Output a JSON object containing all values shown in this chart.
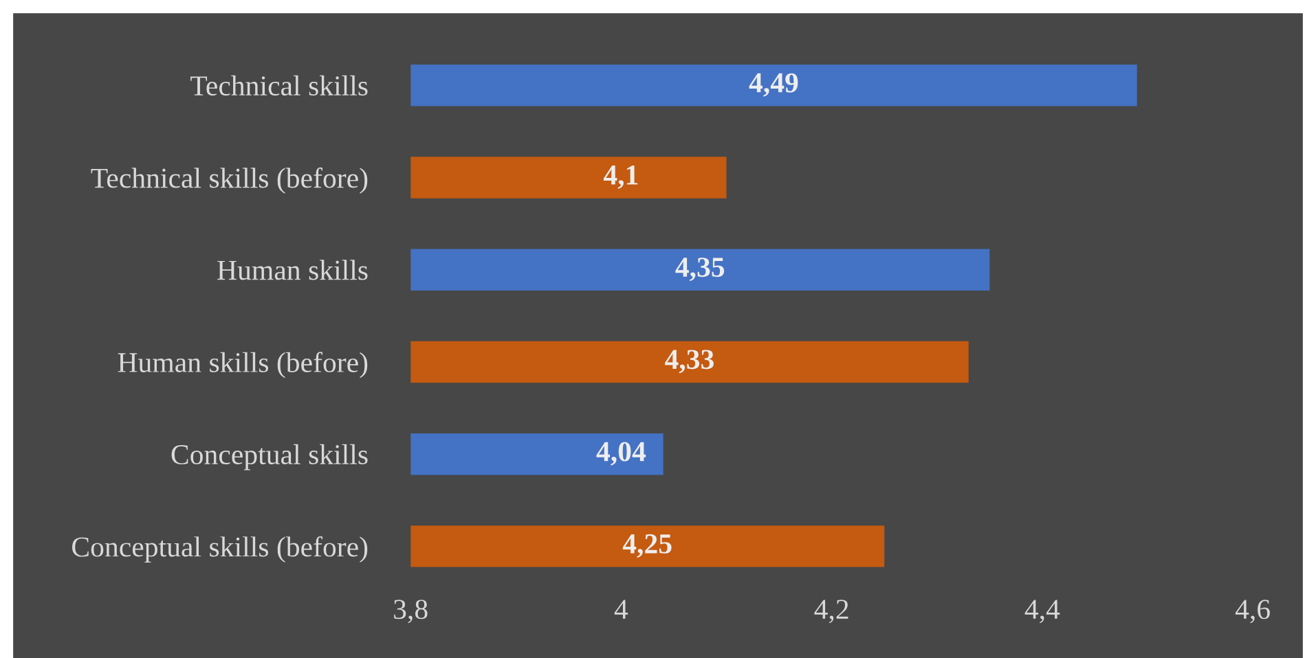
{
  "chart_data": {
    "type": "bar",
    "orientation": "horizontal",
    "categories": [
      "Technical skills",
      "Technical skills (before)",
      "Human skills",
      "Human skills (before)",
      "Conceptual skills",
      "Conceptual skills (before)"
    ],
    "values": [
      4.49,
      4.1,
      4.35,
      4.33,
      4.04,
      4.25
    ],
    "value_labels": [
      "4,49",
      "4,1",
      "4,35",
      "4,33",
      "4,04",
      "4,25"
    ],
    "colors": [
      "#4472c4",
      "#c55a11",
      "#4472c4",
      "#c55a11",
      "#4472c4",
      "#c55a11"
    ],
    "xlim": [
      3.8,
      4.6
    ],
    "xticks": [
      {
        "value": 3.8,
        "label": "3,8"
      },
      4,
      {
        "value": 4.2,
        "label": "4,2"
      },
      {
        "value": 4.4,
        "label": "4,4"
      },
      {
        "value": 4.6,
        "label": "4,6"
      }
    ],
    "grid": false
  }
}
